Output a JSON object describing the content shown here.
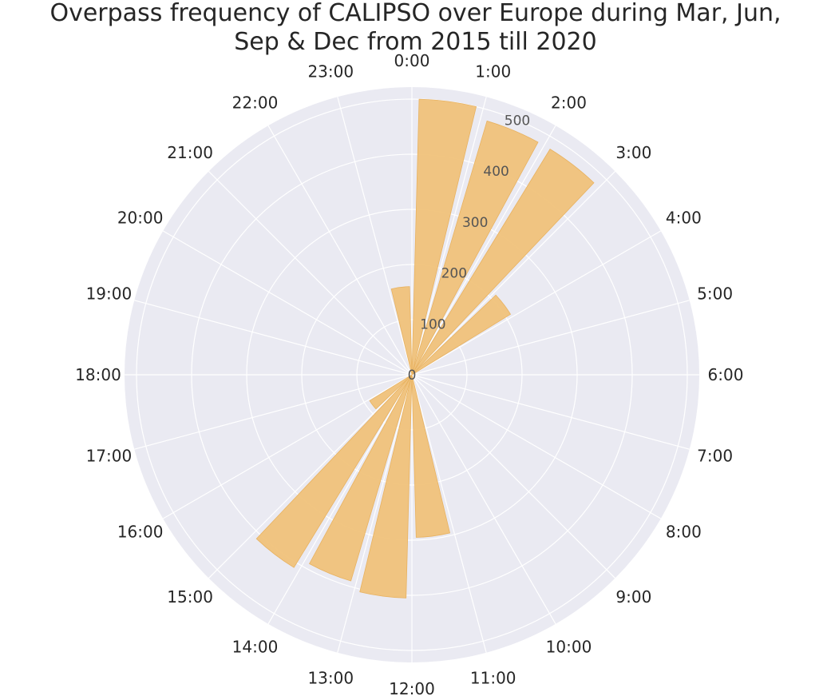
{
  "chart_data": {
    "type": "bar",
    "projection": "polar",
    "title_lines": [
      "Overpass frequency of CALIPSO over Europe during Mar, Jun,",
      "Sep & Dec from 2015 till 2020"
    ],
    "categories": [
      "0:00",
      "1:00",
      "2:00",
      "3:00",
      "4:00",
      "5:00",
      "6:00",
      "7:00",
      "8:00",
      "9:00",
      "10:00",
      "11:00",
      "12:00",
      "13:00",
      "14:00",
      "15:00",
      "16:00",
      "17:00",
      "18:00",
      "19:00",
      "20:00",
      "21:00",
      "22:00",
      "23:00"
    ],
    "values": [
      500,
      480,
      480,
      210,
      0,
      0,
      0,
      0,
      0,
      0,
      0,
      295,
      405,
      390,
      410,
      90,
      0,
      0,
      0,
      0,
      0,
      0,
      0,
      160
    ],
    "radial_ticks": [
      "0",
      "100",
      "200",
      "300",
      "400",
      "500"
    ],
    "rlim": [
      0,
      500
    ],
    "grid": true,
    "direction": "clockwise",
    "zero_location": "top",
    "colors": {
      "bar": "#f0c27a",
      "bar_edge": "#e8b260",
      "background": "#eaeaf2",
      "grid": "#ffffff"
    }
  }
}
